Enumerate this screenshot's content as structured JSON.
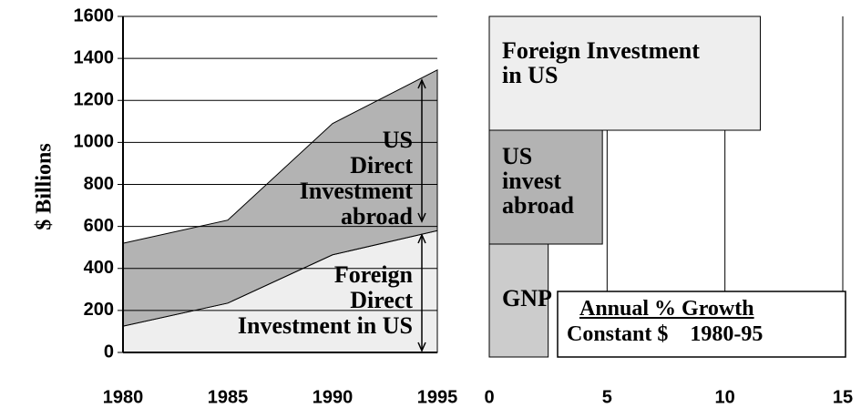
{
  "chart_data": [
    {
      "type": "area",
      "stacked": true,
      "ylabel": "$ Billions",
      "x": [
        1980,
        1985,
        1990,
        1995
      ],
      "xlim": [
        1980,
        1995
      ],
      "xticks": [
        1980,
        1985,
        1990,
        1995
      ],
      "ylim": [
        0,
        1600
      ],
      "yticks": [
        0,
        200,
        400,
        600,
        800,
        1000,
        1200,
        1400,
        1600
      ],
      "grid": true,
      "series": [
        {
          "name": "Foreign\nDirect\nInvestment in US",
          "color": "#eeeeee",
          "values": [
            125,
            235,
            465,
            580
          ]
        },
        {
          "name": "US\nDirect\nInvestment\nabroad",
          "color": "#b3b3b3",
          "values": [
            395,
            395,
            625,
            765
          ]
        }
      ]
    },
    {
      "type": "bar",
      "orientation": "horizontal",
      "categories": [
        "GNP",
        "US\ninvest\nabroad",
        "Foreign Investment\nin US"
      ],
      "values": [
        2.5,
        4.8,
        11.5
      ],
      "colors": [
        "#cccccc",
        "#b3b3b3",
        "#eeeeee"
      ],
      "xlim": [
        0,
        15
      ],
      "xticks": [
        0,
        5,
        10,
        15
      ],
      "grid": true,
      "annotation": {
        "title": "Annual % Growth",
        "text": "Constant $    1980-95"
      }
    }
  ]
}
